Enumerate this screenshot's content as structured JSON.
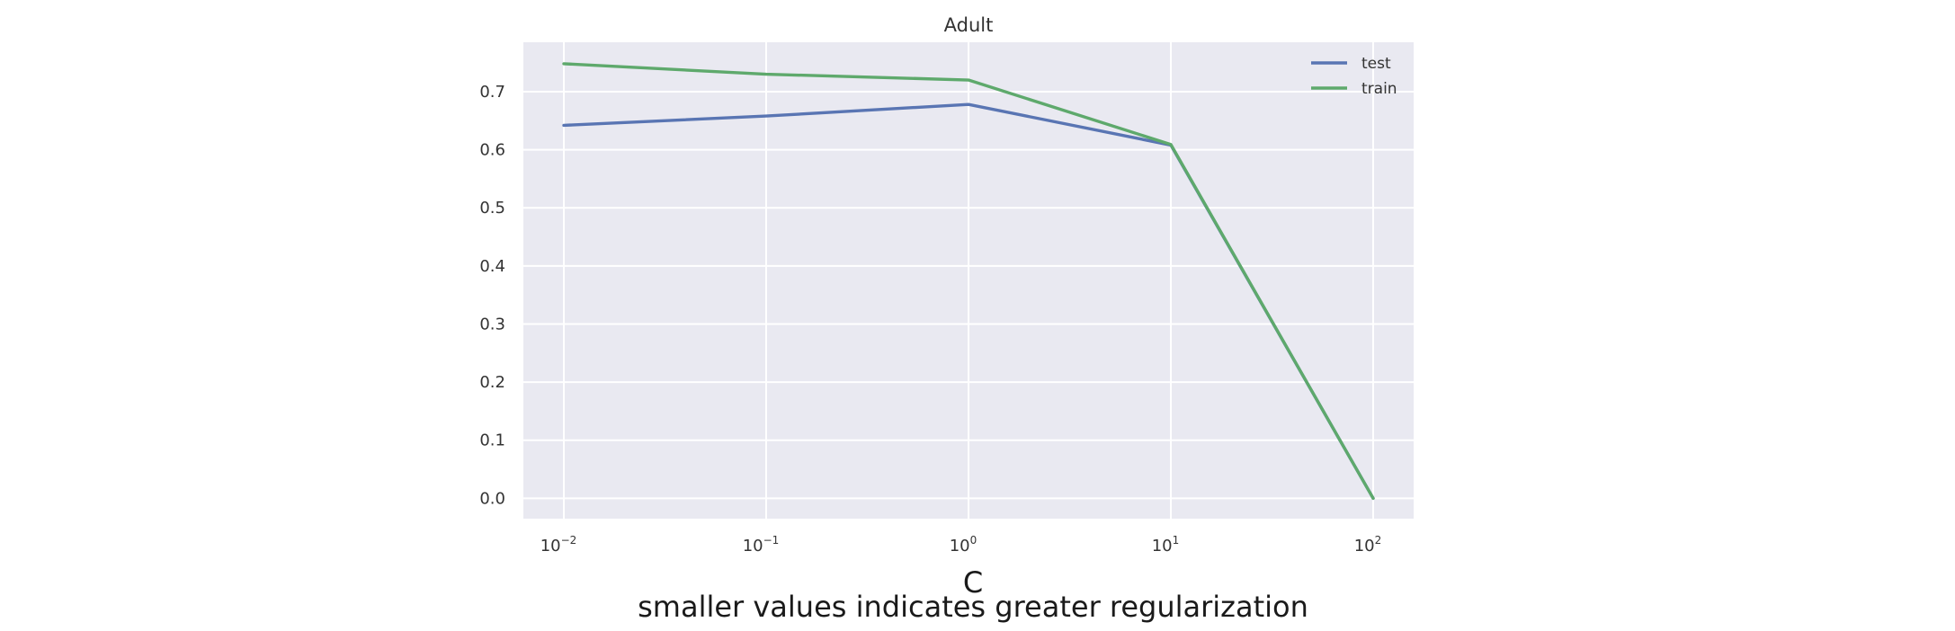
{
  "chart_data": {
    "type": "line",
    "title": "Adult",
    "xlabel": "C",
    "xlabel_sub": "smaller values indicates greater regularization",
    "ylabel": "",
    "x": [
      0.01,
      0.1,
      1,
      10,
      100
    ],
    "x_scale": "log",
    "x_ticks": [
      {
        "value": 0.01,
        "base": "10",
        "exp": "−2"
      },
      {
        "value": 0.1,
        "base": "10",
        "exp": "−1"
      },
      {
        "value": 1,
        "base": "10",
        "exp": "0"
      },
      {
        "value": 10,
        "base": "10",
        "exp": "1"
      },
      {
        "value": 100,
        "base": "10",
        "exp": "2"
      }
    ],
    "y_ticks": [
      "0.0",
      "0.1",
      "0.2",
      "0.3",
      "0.4",
      "0.5",
      "0.6",
      "0.7"
    ],
    "ylim": [
      -0.035,
      0.785
    ],
    "grid": true,
    "legend_position": "top-right",
    "series": [
      {
        "name": "test",
        "color": "#5975b3",
        "values": [
          0.642,
          0.658,
          0.678,
          0.608,
          0.0
        ]
      },
      {
        "name": "train",
        "color": "#5ea96c",
        "values": [
          0.748,
          0.73,
          0.72,
          0.609,
          0.0
        ]
      }
    ]
  }
}
